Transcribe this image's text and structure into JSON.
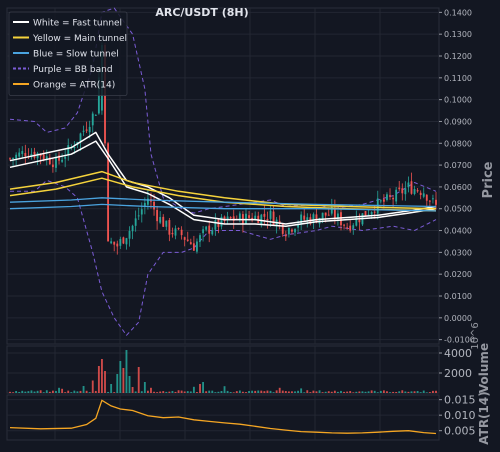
{
  "chart_data": [
    {
      "panel": "price",
      "type": "line",
      "title": "ARC/USDT (8H)",
      "ylabel": "Price",
      "ylim": [
        -0.012,
        0.142
      ],
      "yticks": [
        "-0.0100",
        "0.0000",
        "0.0100",
        "0.0200",
        "0.0300",
        "0.0400",
        "0.0500",
        "0.0600",
        "0.0700",
        "0.0800",
        "0.0900",
        "0.1000",
        "0.1100",
        "0.1200",
        "0.1300",
        "0.1400"
      ],
      "ytick_values": [
        -0.01,
        0.0,
        0.01,
        0.02,
        0.03,
        0.04,
        0.05,
        0.06,
        0.07,
        0.08,
        0.09,
        0.1,
        0.11,
        0.12,
        0.13,
        0.14
      ],
      "grid": true,
      "legend_position": "top-left",
      "legend": [
        {
          "label": "White = Fast tunnel",
          "color": "#ffffff",
          "dash": false
        },
        {
          "label": "Yellow = Main tunnel",
          "color": "#f5d33c",
          "dash": false
        },
        {
          "label": "Blue = Slow tunnel",
          "color": "#4aa3df",
          "dash": false
        },
        {
          "label": "Purple = BB band",
          "color": "#7b5cd6",
          "dash": true
        },
        {
          "label": "Orange = ATR(14)",
          "color": "#f5a623",
          "dash": false
        }
      ],
      "x_count": 140,
      "candles": {
        "up_color": "#26a69a",
        "down_color": "#ef5350",
        "anchors": [
          [
            0,
            0.073
          ],
          [
            5,
            0.076
          ],
          [
            10,
            0.075
          ],
          [
            15,
            0.071
          ],
          [
            20,
            0.078
          ],
          [
            25,
            0.088
          ],
          [
            28,
            0.095
          ],
          [
            30,
            0.125
          ],
          [
            31,
            0.08
          ],
          [
            32,
            0.035
          ],
          [
            35,
            0.033
          ],
          [
            40,
            0.042
          ],
          [
            45,
            0.055
          ],
          [
            48,
            0.047
          ],
          [
            52,
            0.04
          ],
          [
            56,
            0.038
          ],
          [
            60,
            0.033
          ],
          [
            64,
            0.04
          ],
          [
            68,
            0.043
          ],
          [
            72,
            0.045
          ],
          [
            78,
            0.046
          ],
          [
            85,
            0.047
          ],
          [
            90,
            0.04
          ],
          [
            95,
            0.045
          ],
          [
            100,
            0.046
          ],
          [
            105,
            0.048
          ],
          [
            110,
            0.042
          ],
          [
            115,
            0.047
          ],
          [
            120,
            0.052
          ],
          [
            125,
            0.055
          ],
          [
            130,
            0.06
          ],
          [
            135,
            0.058
          ],
          [
            139,
            0.051
          ]
        ]
      },
      "series": [
        {
          "color": "#ffffff",
          "width": 1.5,
          "points": [
            [
              0,
              0.072
            ],
            [
              10,
              0.075
            ],
            [
              20,
              0.078
            ],
            [
              28,
              0.085
            ],
            [
              32,
              0.075
            ],
            [
              38,
              0.063
            ],
            [
              45,
              0.06
            ],
            [
              52,
              0.055
            ],
            [
              60,
              0.047
            ],
            [
              70,
              0.045
            ],
            [
              80,
              0.045
            ],
            [
              90,
              0.043
            ],
            [
              100,
              0.045
            ],
            [
              110,
              0.046
            ],
            [
              120,
              0.047
            ],
            [
              130,
              0.049
            ],
            [
              139,
              0.051
            ]
          ]
        },
        {
          "color": "#ffffff",
          "width": 1.5,
          "points": [
            [
              0,
              0.069
            ],
            [
              10,
              0.072
            ],
            [
              20,
              0.075
            ],
            [
              28,
              0.081
            ],
            [
              32,
              0.073
            ],
            [
              38,
              0.06
            ],
            [
              45,
              0.057
            ],
            [
              52,
              0.052
            ],
            [
              60,
              0.045
            ],
            [
              70,
              0.043
            ],
            [
              80,
              0.043
            ],
            [
              90,
              0.042
            ],
            [
              100,
              0.044
            ],
            [
              110,
              0.045
            ],
            [
              120,
              0.046
            ],
            [
              130,
              0.048
            ],
            [
              139,
              0.05
            ]
          ]
        },
        {
          "color": "#f5d33c",
          "width": 1.5,
          "points": [
            [
              0,
              0.059
            ],
            [
              15,
              0.062
            ],
            [
              30,
              0.067
            ],
            [
              40,
              0.062
            ],
            [
              55,
              0.058
            ],
            [
              70,
              0.055
            ],
            [
              90,
              0.052
            ],
            [
              110,
              0.051
            ],
            [
              139,
              0.05
            ]
          ]
        },
        {
          "color": "#f5d33c",
          "width": 1.5,
          "points": [
            [
              0,
              0.056
            ],
            [
              15,
              0.059
            ],
            [
              30,
              0.064
            ],
            [
              40,
              0.06
            ],
            [
              55,
              0.056
            ],
            [
              70,
              0.053
            ],
            [
              90,
              0.051
            ],
            [
              110,
              0.05
            ],
            [
              139,
              0.049
            ]
          ]
        },
        {
          "color": "#4aa3df",
          "width": 1.3,
          "points": [
            [
              0,
              0.053
            ],
            [
              20,
              0.054
            ],
            [
              30,
              0.055
            ],
            [
              45,
              0.054
            ],
            [
              70,
              0.053
            ],
            [
              100,
              0.052
            ],
            [
              139,
              0.051
            ]
          ]
        },
        {
          "color": "#4aa3df",
          "width": 1.3,
          "points": [
            [
              0,
              0.05
            ],
            [
              20,
              0.051
            ],
            [
              30,
              0.052
            ],
            [
              45,
              0.051
            ],
            [
              70,
              0.05
            ],
            [
              100,
              0.05
            ],
            [
              139,
              0.049
            ]
          ]
        },
        {
          "color": "#7b5cd6",
          "width": 1,
          "dash": true,
          "points": [
            [
              0,
              0.091
            ],
            [
              8,
              0.09
            ],
            [
              12,
              0.085
            ],
            [
              18,
              0.087
            ],
            [
              22,
              0.094
            ],
            [
              27,
              0.115
            ],
            [
              30,
              0.14
            ],
            [
              34,
              0.142
            ],
            [
              40,
              0.13
            ],
            [
              44,
              0.105
            ],
            [
              46,
              0.075
            ],
            [
              50,
              0.055
            ],
            [
              56,
              0.05
            ],
            [
              60,
              0.048
            ],
            [
              65,
              0.05
            ],
            [
              75,
              0.052
            ],
            [
              85,
              0.054
            ],
            [
              90,
              0.051
            ],
            [
              100,
              0.052
            ],
            [
              105,
              0.05
            ],
            [
              115,
              0.052
            ],
            [
              125,
              0.056
            ],
            [
              132,
              0.062
            ],
            [
              139,
              0.058
            ]
          ]
        },
        {
          "color": "#7b5cd6",
          "width": 1,
          "dash": true,
          "points": [
            [
              0,
              0.058
            ],
            [
              8,
              0.058
            ],
            [
              12,
              0.063
            ],
            [
              18,
              0.06
            ],
            [
              22,
              0.055
            ],
            [
              27,
              0.03
            ],
            [
              30,
              0.012
            ],
            [
              34,
              0.0
            ],
            [
              38,
              -0.008
            ],
            [
              42,
              -0.002
            ],
            [
              45,
              0.02
            ],
            [
              50,
              0.03
            ],
            [
              56,
              0.03
            ],
            [
              60,
              0.032
            ],
            [
              65,
              0.04
            ],
            [
              75,
              0.04
            ],
            [
              85,
              0.036
            ],
            [
              90,
              0.038
            ],
            [
              100,
              0.04
            ],
            [
              105,
              0.042
            ],
            [
              115,
              0.04
            ],
            [
              125,
              0.042
            ],
            [
              132,
              0.04
            ],
            [
              139,
              0.045
            ]
          ]
        }
      ]
    },
    {
      "panel": "volume",
      "type": "bar",
      "ylabel": "Volume",
      "exponent_label": "10^6",
      "ylim": [
        0,
        4700
      ],
      "yticks": [
        "2000",
        "4000"
      ],
      "ytick_values": [
        2000,
        4000
      ],
      "x_count": 140,
      "spikes": [
        [
          16,
          520,
          "up"
        ],
        [
          17,
          420,
          "down"
        ],
        [
          24,
          700,
          "up"
        ],
        [
          27,
          1250,
          "down"
        ],
        [
          29,
          2700,
          "down"
        ],
        [
          30,
          3400,
          "down"
        ],
        [
          31,
          2200,
          "down"
        ],
        [
          33,
          900,
          "up"
        ],
        [
          35,
          1900,
          "up"
        ],
        [
          36,
          3200,
          "up"
        ],
        [
          37,
          2500,
          "down"
        ],
        [
          38,
          4300,
          "up"
        ],
        [
          39,
          1700,
          "up"
        ],
        [
          40,
          600,
          "down"
        ],
        [
          42,
          2600,
          "down"
        ],
        [
          44,
          1100,
          "up"
        ],
        [
          46,
          520,
          "down"
        ],
        [
          60,
          620,
          "up"
        ],
        [
          62,
          900,
          "down"
        ],
        [
          63,
          1100,
          "up"
        ],
        [
          70,
          680,
          "up"
        ],
        [
          88,
          520,
          "down"
        ],
        [
          95,
          460,
          "up"
        ]
      ]
    },
    {
      "panel": "atr",
      "type": "line",
      "ylabel": "ATR(14)",
      "ylim": [
        0.002,
        0.0165
      ],
      "yticks": [
        "0.005",
        "0.010",
        "0.015"
      ],
      "ytick_values": [
        0.005,
        0.01,
        0.015
      ],
      "series": [
        {
          "color": "#f5a623",
          "width": 1.3,
          "points": [
            [
              0,
              0.006
            ],
            [
              10,
              0.0056
            ],
            [
              20,
              0.0058
            ],
            [
              25,
              0.007
            ],
            [
              28,
              0.009
            ],
            [
              30,
              0.0148
            ],
            [
              33,
              0.013
            ],
            [
              36,
              0.012
            ],
            [
              40,
              0.0115
            ],
            [
              45,
              0.0098
            ],
            [
              50,
              0.0092
            ],
            [
              55,
              0.0094
            ],
            [
              60,
              0.0085
            ],
            [
              65,
              0.008
            ],
            [
              70,
              0.0075
            ],
            [
              75,
              0.0071
            ],
            [
              80,
              0.0064
            ],
            [
              85,
              0.0057
            ],
            [
              90,
              0.0052
            ],
            [
              95,
              0.0047
            ],
            [
              100,
              0.0045
            ],
            [
              105,
              0.0043
            ],
            [
              110,
              0.0042
            ],
            [
              115,
              0.0043
            ],
            [
              120,
              0.0045
            ],
            [
              125,
              0.0048
            ],
            [
              130,
              0.005
            ],
            [
              135,
              0.0044
            ],
            [
              139,
              0.0041
            ]
          ]
        }
      ]
    }
  ]
}
